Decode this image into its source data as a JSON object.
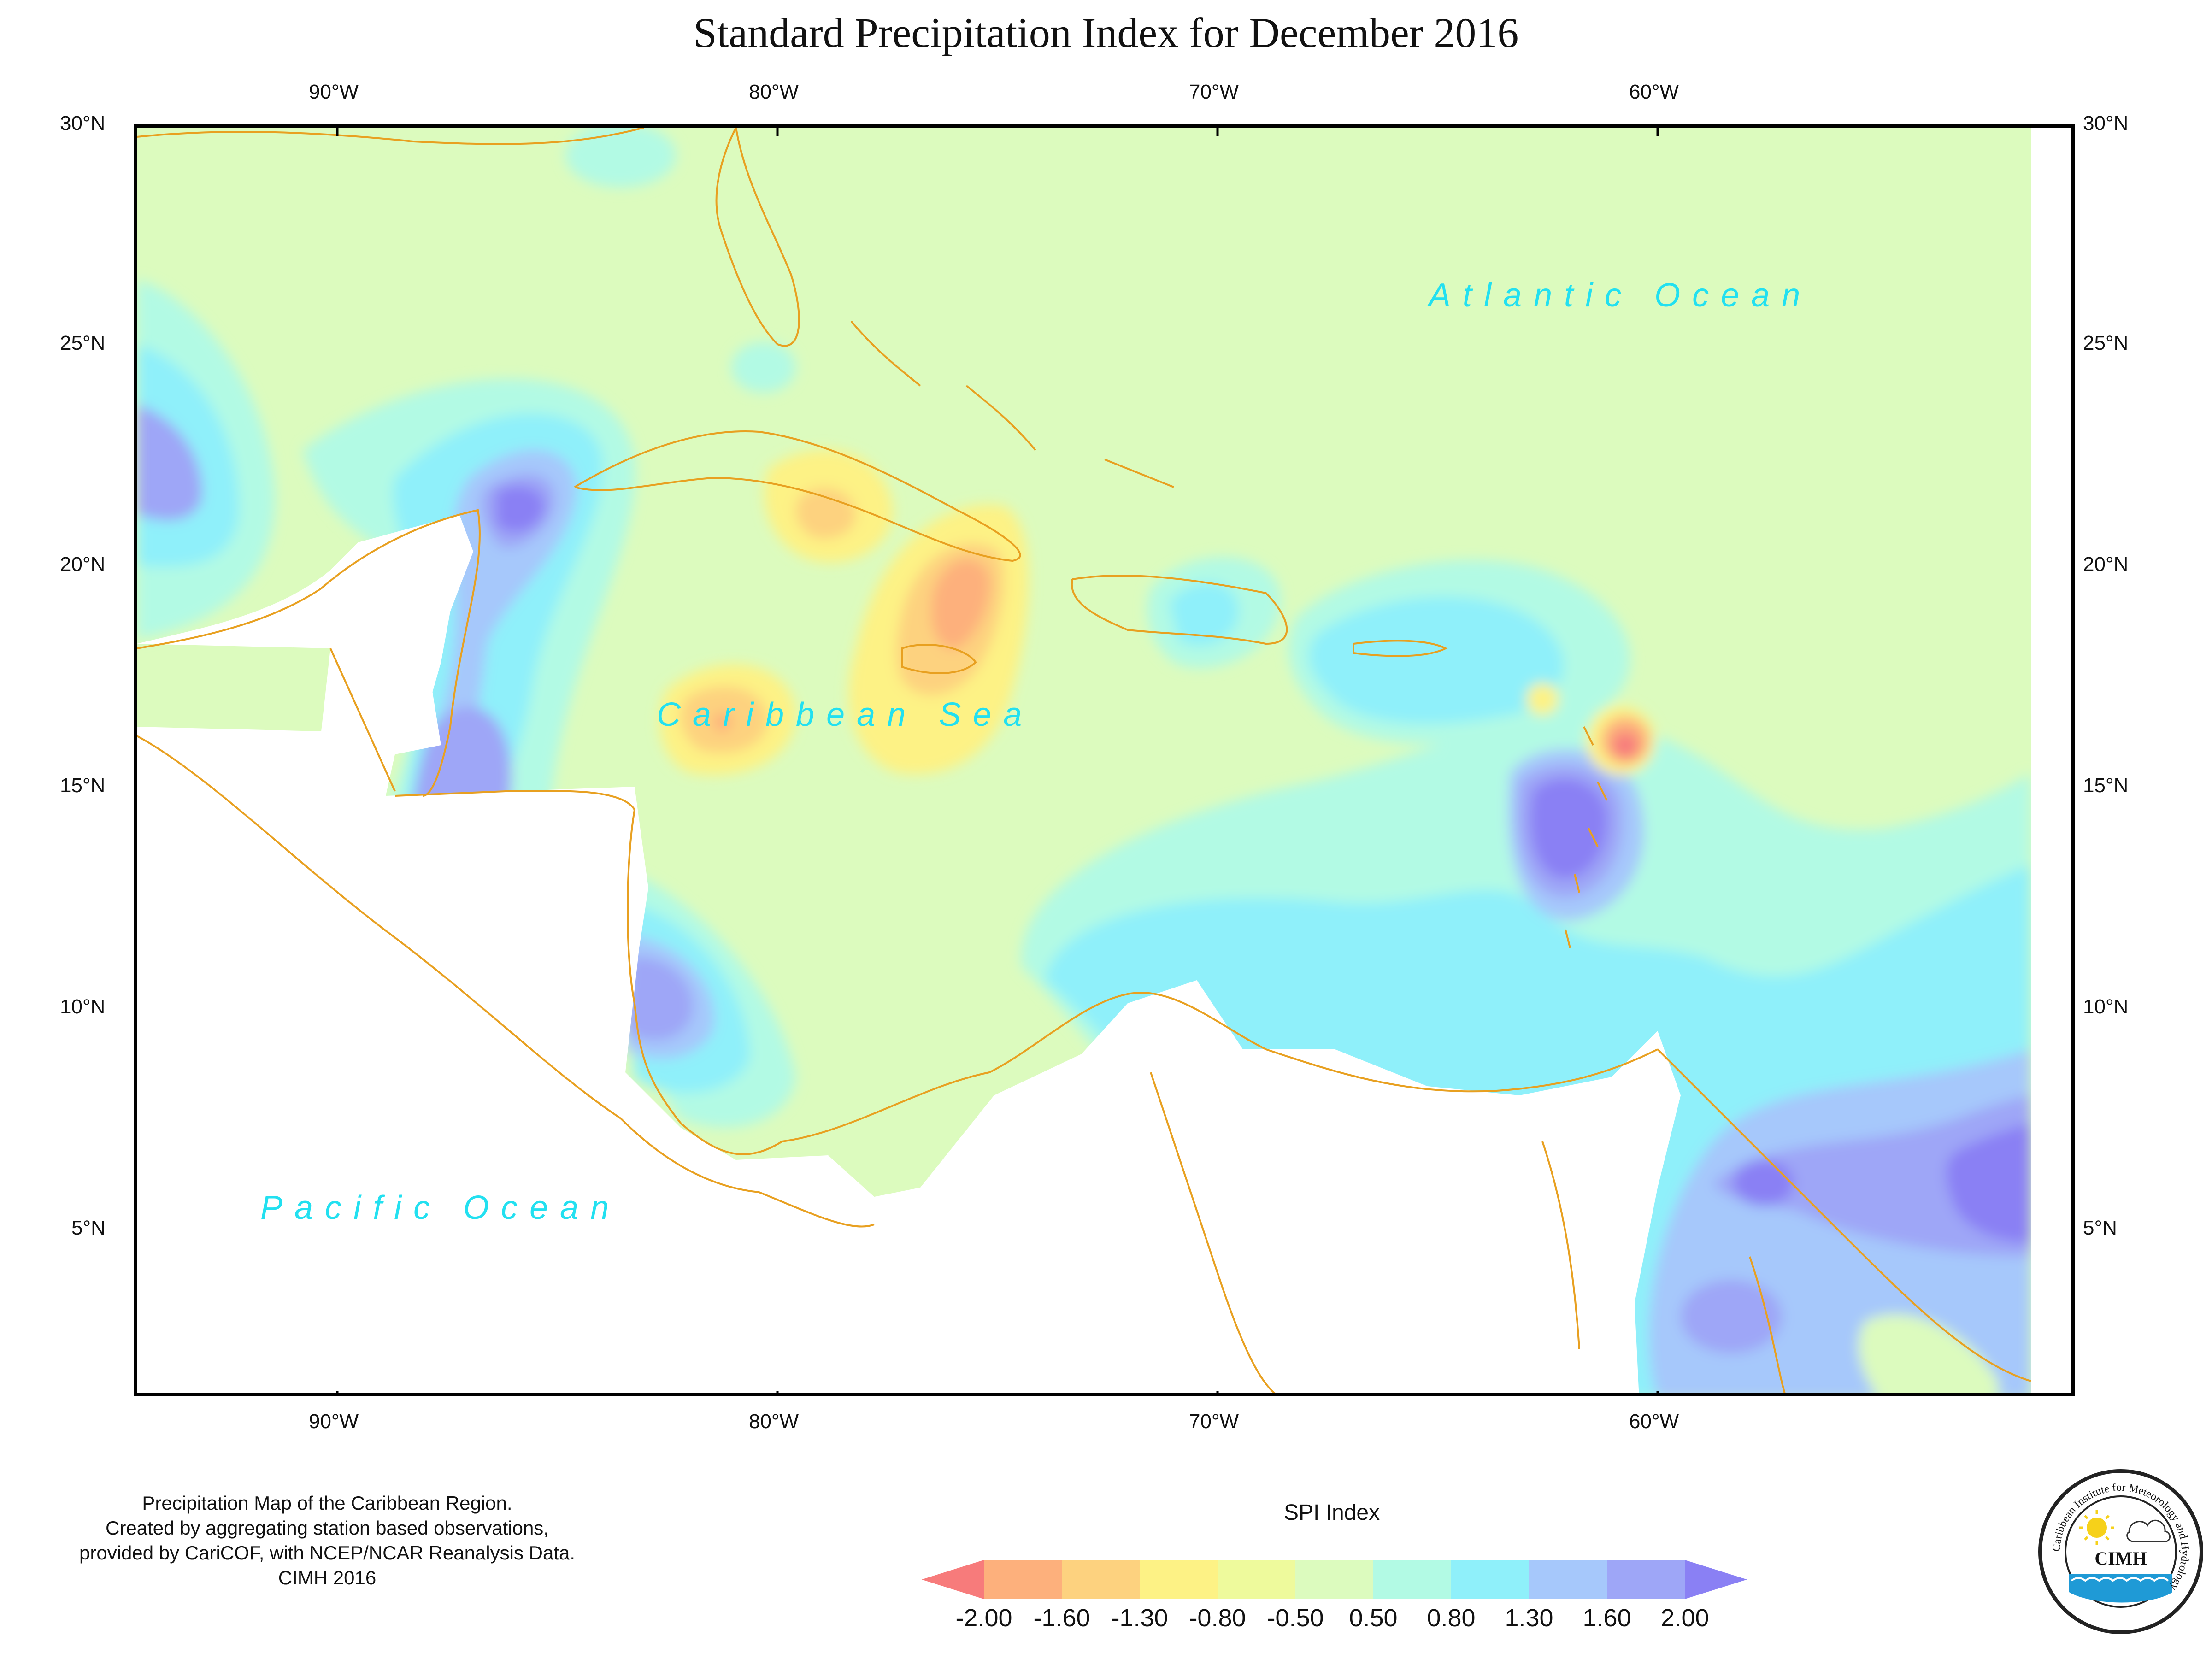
{
  "title": "Standard Precipitation Index for December 2016",
  "axes": {
    "lon_labels": [
      "90°W",
      "80°W",
      "70°W",
      "60°W"
    ],
    "lat_labels": [
      "30°N",
      "25°N",
      "20°N",
      "15°N",
      "10°N",
      "5°N"
    ]
  },
  "ocean_labels": {
    "atlantic": "Atlantic Ocean",
    "caribbean": "Caribbean Sea",
    "pacific": "Pacific Ocean"
  },
  "caption": {
    "line1": "Precipitation Map of the Caribbean Region.",
    "line2": "Created by aggregating station based observations,",
    "line3": "provided by CariCOF, with NCEP/NCAR Reanalysis Data.",
    "line4": "CIMH 2016"
  },
  "legend": {
    "title": "SPI Index",
    "values": [
      "-2.00",
      "-1.60",
      "-1.30",
      "-0.80",
      "-0.50",
      "0.50",
      "0.80",
      "1.30",
      "1.60",
      "2.00"
    ],
    "colors": [
      "#f77b7b",
      "#fdb07c",
      "#fdd27f",
      "#fdf285",
      "#eefa9c",
      "#dcfbbe",
      "#b2fae4",
      "#8ff0fa",
      "#a6c8fb",
      "#9ea6f7",
      "#8a80f4"
    ]
  },
  "logo": {
    "name": "CIMH",
    "ring_text": "Caribbean Institute for Meteorology and Hydrology"
  },
  "colors": {
    "land_outline": "#e8a020",
    "ocean_text": "#22e0f0"
  }
}
